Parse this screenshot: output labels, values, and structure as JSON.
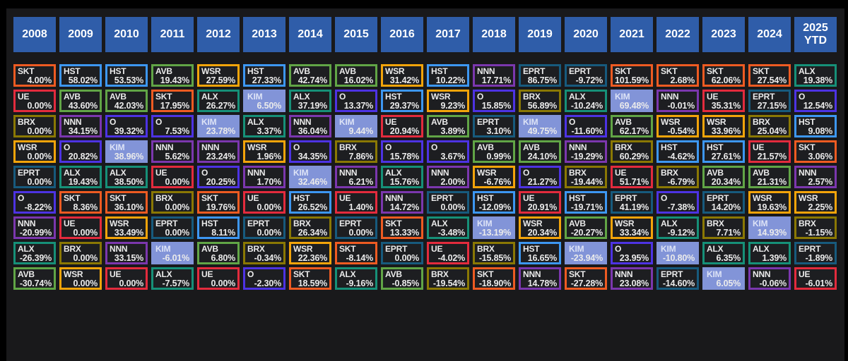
{
  "page": {
    "background": "#000000",
    "panel_background": "#19191b",
    "cell_background": "#1d1e21",
    "header_background": "#2f5da9",
    "text_color": "#ebebeb"
  },
  "tickers": {
    "colors": {
      "SKT": "#ee5b22",
      "HST": "#3d97f2",
      "AVB": "#61a546",
      "WSR": "#f3a40a",
      "UE": "#e32b3d",
      "BRX": "#8a7804",
      "NNN": "#7b37ae",
      "O": "#4d33e3",
      "EPRT": "#175a7d",
      "ALX": "#169078",
      "KIM": "#8294d8"
    },
    "filled": [
      "KIM"
    ]
  },
  "chart_data": {
    "type": "heatmap",
    "subtype": "performance-quilt",
    "columns": [
      "2008",
      "2009",
      "2010",
      "2011",
      "2012",
      "2013",
      "2014",
      "2015",
      "2016",
      "2017",
      "2018",
      "2019",
      "2020",
      "2021",
      "2022",
      "2023",
      "2024",
      "2025 YTD"
    ],
    "years": [
      {
        "label": "2008",
        "cells": [
          {
            "ticker": "SKT",
            "value": "4.00%"
          },
          {
            "ticker": "UE",
            "value": "0.00%"
          },
          {
            "ticker": "BRX",
            "value": "0.00%"
          },
          {
            "ticker": "WSR",
            "value": "0.00%"
          },
          {
            "ticker": "EPRT",
            "value": "0.00%"
          },
          {
            "ticker": "O",
            "value": "-8.22%"
          },
          {
            "ticker": "NNN",
            "value": "-20.99%"
          },
          {
            "ticker": "ALX",
            "value": "-26.39%"
          },
          {
            "ticker": "AVB",
            "value": "-30.74%"
          }
        ]
      },
      {
        "label": "2009",
        "cells": [
          {
            "ticker": "HST",
            "value": "58.02%"
          },
          {
            "ticker": "AVB",
            "value": "43.60%"
          },
          {
            "ticker": "NNN",
            "value": "34.15%"
          },
          {
            "ticker": "O",
            "value": "20.82%"
          },
          {
            "ticker": "ALX",
            "value": "19.43%"
          },
          {
            "ticker": "SKT",
            "value": "8.36%"
          },
          {
            "ticker": "UE",
            "value": "0.00%"
          },
          {
            "ticker": "BRX",
            "value": "0.00%"
          },
          {
            "ticker": "WSR",
            "value": "0.00%"
          }
        ]
      },
      {
        "label": "2010",
        "cells": [
          {
            "ticker": "HST",
            "value": "53.53%"
          },
          {
            "ticker": "AVB",
            "value": "42.03%"
          },
          {
            "ticker": "O",
            "value": "39.32%"
          },
          {
            "ticker": "KIM",
            "value": "38.96%"
          },
          {
            "ticker": "ALX",
            "value": "38.50%"
          },
          {
            "ticker": "SKT",
            "value": "36.10%"
          },
          {
            "ticker": "WSR",
            "value": "33.49%"
          },
          {
            "ticker": "NNN",
            "value": "33.15%"
          },
          {
            "ticker": "UE",
            "value": "0.00%"
          }
        ]
      },
      {
        "label": "2011",
        "cells": [
          {
            "ticker": "AVB",
            "value": "19.43%"
          },
          {
            "ticker": "SKT",
            "value": "17.95%"
          },
          {
            "ticker": "O",
            "value": "7.53%"
          },
          {
            "ticker": "NNN",
            "value": "5.62%"
          },
          {
            "ticker": "UE",
            "value": "0.00%"
          },
          {
            "ticker": "BRX",
            "value": "0.00%"
          },
          {
            "ticker": "EPRT",
            "value": "0.00%"
          },
          {
            "ticker": "KIM",
            "value": "-6.01%"
          },
          {
            "ticker": "ALX",
            "value": "-7.57%"
          }
        ]
      },
      {
        "label": "2012",
        "cells": [
          {
            "ticker": "WSR",
            "value": "27.59%"
          },
          {
            "ticker": "ALX",
            "value": "26.27%"
          },
          {
            "ticker": "KIM",
            "value": "23.78%"
          },
          {
            "ticker": "NNN",
            "value": "23.24%"
          },
          {
            "ticker": "O",
            "value": "20.25%"
          },
          {
            "ticker": "SKT",
            "value": "19.76%"
          },
          {
            "ticker": "HST",
            "value": "8.11%"
          },
          {
            "ticker": "AVB",
            "value": "6.80%"
          },
          {
            "ticker": "UE",
            "value": "0.00%"
          }
        ]
      },
      {
        "label": "2013",
        "cells": [
          {
            "ticker": "HST",
            "value": "27.33%"
          },
          {
            "ticker": "KIM",
            "value": "6.50%"
          },
          {
            "ticker": "ALX",
            "value": "3.37%"
          },
          {
            "ticker": "WSR",
            "value": "1.96%"
          },
          {
            "ticker": "NNN",
            "value": "1.70%"
          },
          {
            "ticker": "UE",
            "value": "0.00%"
          },
          {
            "ticker": "EPRT",
            "value": "0.00%"
          },
          {
            "ticker": "BRX",
            "value": "-0.34%"
          },
          {
            "ticker": "O",
            "value": "-2.30%"
          }
        ]
      },
      {
        "label": "2014",
        "cells": [
          {
            "ticker": "AVB",
            "value": "42.74%"
          },
          {
            "ticker": "ALX",
            "value": "37.19%"
          },
          {
            "ticker": "NNN",
            "value": "36.04%"
          },
          {
            "ticker": "O",
            "value": "34.35%"
          },
          {
            "ticker": "KIM",
            "value": "32.46%"
          },
          {
            "ticker": "HST",
            "value": "26.52%"
          },
          {
            "ticker": "BRX",
            "value": "26.34%"
          },
          {
            "ticker": "WSR",
            "value": "22.36%"
          },
          {
            "ticker": "SKT",
            "value": "18.59%"
          }
        ]
      },
      {
        "label": "2015",
        "cells": [
          {
            "ticker": "AVB",
            "value": "16.02%"
          },
          {
            "ticker": "O",
            "value": "13.37%"
          },
          {
            "ticker": "KIM",
            "value": "9.44%"
          },
          {
            "ticker": "BRX",
            "value": "7.86%"
          },
          {
            "ticker": "NNN",
            "value": "6.21%"
          },
          {
            "ticker": "UE",
            "value": "1.40%"
          },
          {
            "ticker": "EPRT",
            "value": "0.00%"
          },
          {
            "ticker": "SKT",
            "value": "-8.14%"
          },
          {
            "ticker": "ALX",
            "value": "-9.16%"
          }
        ]
      },
      {
        "label": "2016",
        "cells": [
          {
            "ticker": "WSR",
            "value": "31.42%"
          },
          {
            "ticker": "HST",
            "value": "29.37%"
          },
          {
            "ticker": "UE",
            "value": "20.94%"
          },
          {
            "ticker": "O",
            "value": "15.78%"
          },
          {
            "ticker": "ALX",
            "value": "15.76%"
          },
          {
            "ticker": "NNN",
            "value": "14.72%"
          },
          {
            "ticker": "SKT",
            "value": "13.33%"
          },
          {
            "ticker": "EPRT",
            "value": "0.00%"
          },
          {
            "ticker": "AVB",
            "value": "-0.85%"
          }
        ]
      },
      {
        "label": "2017",
        "cells": [
          {
            "ticker": "HST",
            "value": "10.22%"
          },
          {
            "ticker": "WSR",
            "value": "9.23%"
          },
          {
            "ticker": "AVB",
            "value": "3.89%"
          },
          {
            "ticker": "O",
            "value": "3.67%"
          },
          {
            "ticker": "NNN",
            "value": "2.00%"
          },
          {
            "ticker": "EPRT",
            "value": "0.00%"
          },
          {
            "ticker": "ALX",
            "value": "-3.48%"
          },
          {
            "ticker": "UE",
            "value": "-4.02%"
          },
          {
            "ticker": "BRX",
            "value": "-19.54%"
          }
        ]
      },
      {
        "label": "2018",
        "cells": [
          {
            "ticker": "NNN",
            "value": "17.71%"
          },
          {
            "ticker": "O",
            "value": "15.85%"
          },
          {
            "ticker": "EPRT",
            "value": "3.10%"
          },
          {
            "ticker": "AVB",
            "value": "0.99%"
          },
          {
            "ticker": "WSR",
            "value": "-6.76%"
          },
          {
            "ticker": "HST",
            "value": "-12.09%"
          },
          {
            "ticker": "KIM",
            "value": "-13.19%"
          },
          {
            "ticker": "BRX",
            "value": "-15.85%"
          },
          {
            "ticker": "SKT",
            "value": "-18.90%"
          }
        ]
      },
      {
        "label": "2019",
        "cells": [
          {
            "ticker": "EPRT",
            "value": "86.75%"
          },
          {
            "ticker": "BRX",
            "value": "56.89%"
          },
          {
            "ticker": "KIM",
            "value": "49.75%"
          },
          {
            "ticker": "AVB",
            "value": "24.10%"
          },
          {
            "ticker": "O",
            "value": "21.27%"
          },
          {
            "ticker": "UE",
            "value": "20.91%"
          },
          {
            "ticker": "WSR",
            "value": "20.34%"
          },
          {
            "ticker": "HST",
            "value": "16.65%"
          },
          {
            "ticker": "NNN",
            "value": "14.78%"
          }
        ]
      },
      {
        "label": "2020",
        "cells": [
          {
            "ticker": "EPRT",
            "value": "-9.72%"
          },
          {
            "ticker": "ALX",
            "value": "-10.24%"
          },
          {
            "ticker": "O",
            "value": "-11.60%"
          },
          {
            "ticker": "NNN",
            "value": "-19.29%"
          },
          {
            "ticker": "BRX",
            "value": "-19.44%"
          },
          {
            "ticker": "HST",
            "value": "-19.71%"
          },
          {
            "ticker": "AVB",
            "value": "-20.27%"
          },
          {
            "ticker": "KIM",
            "value": "-23.94%"
          },
          {
            "ticker": "SKT",
            "value": "-27.28%"
          }
        ]
      },
      {
        "label": "2021",
        "cells": [
          {
            "ticker": "SKT",
            "value": "101.59%"
          },
          {
            "ticker": "KIM",
            "value": "69.48%"
          },
          {
            "ticker": "AVB",
            "value": "62.17%"
          },
          {
            "ticker": "BRX",
            "value": "60.29%"
          },
          {
            "ticker": "UE",
            "value": "51.71%"
          },
          {
            "ticker": "EPRT",
            "value": "41.19%"
          },
          {
            "ticker": "WSR",
            "value": "33.34%"
          },
          {
            "ticker": "O",
            "value": "23.95%"
          },
          {
            "ticker": "NNN",
            "value": "23.08%"
          }
        ]
      },
      {
        "label": "2022",
        "cells": [
          {
            "ticker": "SKT",
            "value": "2.68%"
          },
          {
            "ticker": "NNN",
            "value": "-0.01%"
          },
          {
            "ticker": "WSR",
            "value": "-0.54%"
          },
          {
            "ticker": "HST",
            "value": "-4.62%"
          },
          {
            "ticker": "BRX",
            "value": "-6.79%"
          },
          {
            "ticker": "O",
            "value": "-7.38%"
          },
          {
            "ticker": "ALX",
            "value": "-9.12%"
          },
          {
            "ticker": "KIM",
            "value": "-10.80%"
          },
          {
            "ticker": "EPRT",
            "value": "-14.60%"
          }
        ]
      },
      {
        "label": "2023",
        "cells": [
          {
            "ticker": "SKT",
            "value": "62.06%"
          },
          {
            "ticker": "UE",
            "value": "35.31%"
          },
          {
            "ticker": "WSR",
            "value": "33.96%"
          },
          {
            "ticker": "HST",
            "value": "27.61%"
          },
          {
            "ticker": "AVB",
            "value": "20.34%"
          },
          {
            "ticker": "EPRT",
            "value": "14.20%"
          },
          {
            "ticker": "BRX",
            "value": "7.71%"
          },
          {
            "ticker": "ALX",
            "value": "6.35%"
          },
          {
            "ticker": "KIM",
            "value": "6.05%"
          }
        ]
      },
      {
        "label": "2024",
        "cells": [
          {
            "ticker": "SKT",
            "value": "27.54%"
          },
          {
            "ticker": "EPRT",
            "value": "27.15%"
          },
          {
            "ticker": "BRX",
            "value": "25.04%"
          },
          {
            "ticker": "UE",
            "value": "21.57%"
          },
          {
            "ticker": "AVB",
            "value": "21.31%"
          },
          {
            "ticker": "WSR",
            "value": "19.63%"
          },
          {
            "ticker": "KIM",
            "value": "14.93%"
          },
          {
            "ticker": "ALX",
            "value": "1.39%"
          },
          {
            "ticker": "NNN",
            "value": "-0.06%"
          }
        ]
      },
      {
        "label": "2025 YTD",
        "cells": [
          {
            "ticker": "ALX",
            "value": "19.38%"
          },
          {
            "ticker": "O",
            "value": "12.54%"
          },
          {
            "ticker": "HST",
            "value": "9.08%"
          },
          {
            "ticker": "SKT",
            "value": "3.06%"
          },
          {
            "ticker": "NNN",
            "value": "2.57%"
          },
          {
            "ticker": "WSR",
            "value": "2.25%"
          },
          {
            "ticker": "BRX",
            "value": "-1.15%"
          },
          {
            "ticker": "EPRT",
            "value": "-1.89%"
          },
          {
            "ticker": "UE",
            "value": "-6.01%"
          }
        ]
      }
    ]
  }
}
